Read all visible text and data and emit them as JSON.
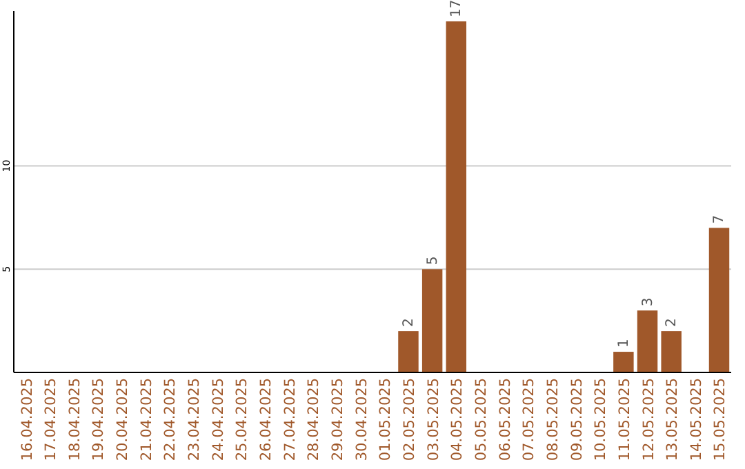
{
  "chart_data": {
    "type": "bar",
    "categories": [
      "16.04.2025",
      "17.04.2025",
      "18.04.2025",
      "19.04.2025",
      "20.04.2025",
      "21.04.2025",
      "22.04.2025",
      "23.04.2025",
      "24.04.2025",
      "25.04.2025",
      "26.04.2025",
      "27.04.2025",
      "28.04.2025",
      "29.04.2025",
      "30.04.2025",
      "01.05.2025",
      "02.05.2025",
      "03.05.2025",
      "04.05.2025",
      "05.05.2025",
      "06.05.2025",
      "07.05.2025",
      "08.05.2025",
      "09.05.2025",
      "10.05.2025",
      "11.05.2025",
      "12.05.2025",
      "13.05.2025",
      "14.05.2025",
      "15.05.2025"
    ],
    "values": [
      0,
      0,
      0,
      0,
      0,
      0,
      0,
      0,
      0,
      0,
      0,
      0,
      0,
      0,
      0,
      0,
      2,
      5,
      17,
      0,
      0,
      0,
      0,
      0,
      0,
      1,
      3,
      2,
      0,
      7
    ],
    "value_labels": [
      null,
      null,
      null,
      null,
      null,
      null,
      null,
      null,
      null,
      null,
      null,
      null,
      null,
      null,
      null,
      null,
      "2",
      "5",
      "17",
      null,
      null,
      null,
      null,
      null,
      null,
      "1",
      "3",
      "2",
      null,
      "7"
    ],
    "color": "#a0582a",
    "ylim": [
      0,
      17.5
    ],
    "yticks": [
      5,
      10
    ],
    "grid": "y"
  }
}
